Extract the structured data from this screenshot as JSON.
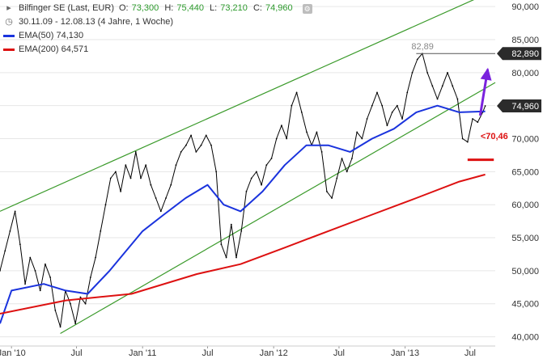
{
  "header": {
    "instrument": "Bilfinger SE (Last, EUR)",
    "o_label": "O:",
    "o": "73,300",
    "h_label": "H:",
    "h": "75,440",
    "l_label": "L:",
    "l": "73,210",
    "c_label": "C:",
    "c": "74,960",
    "period": "30.11.09 - 12.08.13 (4 Jahre, 1 Woche)",
    "ema50_label": "EMA(50)",
    "ema50_value": "74,130",
    "ema200_label": "EMA(200)",
    "ema200_value": "64,571",
    "clock_icon": "clock-icon",
    "settings_icon": "settings-icon"
  },
  "colors": {
    "price": "#000000",
    "ema50": "#1a33dd",
    "ema200": "#dd1111",
    "channel": "#3a9a2a",
    "annotation": "#dd1111",
    "arrow": "#7a22dd",
    "gridline": "#e6e6e6",
    "label_box": "#2b2b2b",
    "ohlc_values": "#2d9a2d"
  },
  "chart_data": {
    "type": "line",
    "title": "Bilfinger SE (Last, EUR)",
    "ylim": [
      38600,
      91000
    ],
    "xlim": [
      "2009-11-30",
      "2013-09-09"
    ],
    "grid": "horizontal",
    "legend_placement": "top-left",
    "y_ticks": [
      {
        "value": 40000,
        "label": "40,000"
      },
      {
        "value": 45000,
        "label": "45,000"
      },
      {
        "value": 50000,
        "label": "50,000"
      },
      {
        "value": 55000,
        "label": "55,000"
      },
      {
        "value": 60000,
        "label": "60,000"
      },
      {
        "value": 65000,
        "label": "65,000"
      },
      {
        "value": 70000,
        "label": "70,000"
      },
      {
        "value": 75000,
        "label": "75,000"
      },
      {
        "value": 80000,
        "label": "80,000"
      },
      {
        "value": 85000,
        "label": "85,000"
      },
      {
        "value": 90000,
        "label": "90,000"
      }
    ],
    "x_ticks": [
      {
        "date": "2010-01-01",
        "label": "Jan '10"
      },
      {
        "date": "2010-07-01",
        "label": "Jul"
      },
      {
        "date": "2011-01-01",
        "label": "Jan '11"
      },
      {
        "date": "2011-07-01",
        "label": "Jul"
      },
      {
        "date": "2012-01-01",
        "label": "Jan '12"
      },
      {
        "date": "2012-07-01",
        "label": "Jul"
      },
      {
        "date": "2013-01-01",
        "label": "Jan '13"
      },
      {
        "date": "2013-07-01",
        "label": "Jul"
      }
    ],
    "series": [
      {
        "name": "Bilfinger SE (Last, EUR)",
        "key": "price",
        "points": [
          [
            "2009-11-30",
            50000
          ],
          [
            "2009-12-14",
            53000
          ],
          [
            "2009-12-28",
            56000
          ],
          [
            "2010-01-11",
            59000
          ],
          [
            "2010-01-25",
            54000
          ],
          [
            "2010-02-08",
            48000
          ],
          [
            "2010-02-22",
            52000
          ],
          [
            "2010-03-08",
            50000
          ],
          [
            "2010-03-22",
            47000
          ],
          [
            "2010-04-05",
            51000
          ],
          [
            "2010-04-19",
            49000
          ],
          [
            "2010-05-03",
            44000
          ],
          [
            "2010-05-17",
            41500
          ],
          [
            "2010-05-31",
            47000
          ],
          [
            "2010-06-14",
            45000
          ],
          [
            "2010-06-28",
            42000
          ],
          [
            "2010-07-12",
            46000
          ],
          [
            "2010-07-26",
            45000
          ],
          [
            "2010-08-09",
            49000
          ],
          [
            "2010-08-23",
            52000
          ],
          [
            "2010-09-06",
            56000
          ],
          [
            "2010-09-20",
            60000
          ],
          [
            "2010-10-04",
            64000
          ],
          [
            "2010-10-18",
            65000
          ],
          [
            "2010-11-01",
            62000
          ],
          [
            "2010-11-15",
            66000
          ],
          [
            "2010-11-29",
            64000
          ],
          [
            "2010-12-13",
            68000
          ],
          [
            "2010-12-27",
            64000
          ],
          [
            "2011-01-10",
            66000
          ],
          [
            "2011-01-24",
            63000
          ],
          [
            "2011-02-07",
            61000
          ],
          [
            "2011-02-21",
            59000
          ],
          [
            "2011-03-07",
            61000
          ],
          [
            "2011-03-21",
            63000
          ],
          [
            "2011-04-04",
            66000
          ],
          [
            "2011-04-18",
            68000
          ],
          [
            "2011-05-02",
            69000
          ],
          [
            "2011-05-16",
            70500
          ],
          [
            "2011-05-30",
            68000
          ],
          [
            "2011-06-13",
            69000
          ],
          [
            "2011-06-27",
            70500
          ],
          [
            "2011-07-11",
            69000
          ],
          [
            "2011-07-25",
            65000
          ],
          [
            "2011-08-08",
            54000
          ],
          [
            "2011-08-22",
            52000
          ],
          [
            "2011-09-05",
            57000
          ],
          [
            "2011-09-19",
            52000
          ],
          [
            "2011-10-03",
            56000
          ],
          [
            "2011-10-17",
            62000
          ],
          [
            "2011-10-31",
            64000
          ],
          [
            "2011-11-14",
            65000
          ],
          [
            "2011-11-28",
            63000
          ],
          [
            "2011-12-12",
            66000
          ],
          [
            "2011-12-26",
            67000
          ],
          [
            "2012-01-09",
            70000
          ],
          [
            "2012-01-23",
            72000
          ],
          [
            "2012-02-06",
            70000
          ],
          [
            "2012-02-20",
            75000
          ],
          [
            "2012-03-05",
            77000
          ],
          [
            "2012-03-19",
            74000
          ],
          [
            "2012-04-02",
            71000
          ],
          [
            "2012-04-16",
            69000
          ],
          [
            "2012-04-30",
            71000
          ],
          [
            "2012-05-14",
            68000
          ],
          [
            "2012-05-28",
            62000
          ],
          [
            "2012-06-11",
            61000
          ],
          [
            "2012-06-25",
            64000
          ],
          [
            "2012-07-09",
            67000
          ],
          [
            "2012-07-23",
            65000
          ],
          [
            "2012-08-06",
            67000
          ],
          [
            "2012-08-20",
            71000
          ],
          [
            "2012-09-03",
            70000
          ],
          [
            "2012-09-17",
            73000
          ],
          [
            "2012-10-01",
            75000
          ],
          [
            "2012-10-15",
            77000
          ],
          [
            "2012-10-29",
            75000
          ],
          [
            "2012-11-12",
            72000
          ],
          [
            "2012-11-26",
            74000
          ],
          [
            "2012-12-10",
            75000
          ],
          [
            "2012-12-24",
            73000
          ],
          [
            "2013-01-07",
            77000
          ],
          [
            "2013-01-21",
            80000
          ],
          [
            "2013-02-04",
            82000
          ],
          [
            "2013-02-18",
            82890
          ],
          [
            "2013-03-04",
            80000
          ],
          [
            "2013-03-18",
            78000
          ],
          [
            "2013-04-01",
            76000
          ],
          [
            "2013-04-15",
            78000
          ],
          [
            "2013-04-29",
            80000
          ],
          [
            "2013-05-13",
            78000
          ],
          [
            "2013-05-27",
            76000
          ],
          [
            "2013-06-10",
            70000
          ],
          [
            "2013-06-24",
            69500
          ],
          [
            "2013-07-08",
            73000
          ],
          [
            "2013-07-22",
            72500
          ],
          [
            "2013-08-05",
            74000
          ],
          [
            "2013-08-12",
            74960
          ]
        ]
      },
      {
        "name": "EMA(50)",
        "key": "ema50",
        "points": [
          [
            "2009-11-30",
            42000
          ],
          [
            "2010-01-01",
            47000
          ],
          [
            "2010-04-01",
            48000
          ],
          [
            "2010-06-01",
            47000
          ],
          [
            "2010-08-01",
            46500
          ],
          [
            "2010-10-01",
            50000
          ],
          [
            "2011-01-01",
            56000
          ],
          [
            "2011-03-01",
            58500
          ],
          [
            "2011-05-01",
            61000
          ],
          [
            "2011-07-01",
            63000
          ],
          [
            "2011-08-15",
            60000
          ],
          [
            "2011-10-01",
            59000
          ],
          [
            "2011-12-01",
            62000
          ],
          [
            "2012-02-01",
            66000
          ],
          [
            "2012-04-01",
            69000
          ],
          [
            "2012-06-01",
            69000
          ],
          [
            "2012-08-01",
            68000
          ],
          [
            "2012-10-01",
            70000
          ],
          [
            "2012-12-01",
            71500
          ],
          [
            "2013-02-01",
            74000
          ],
          [
            "2013-04-01",
            75000
          ],
          [
            "2013-06-01",
            74000
          ],
          [
            "2013-08-12",
            74130
          ]
        ]
      },
      {
        "name": "EMA(200)",
        "key": "ema200",
        "points": [
          [
            "2009-11-30",
            43500
          ],
          [
            "2010-06-01",
            45500
          ],
          [
            "2010-12-01",
            46500
          ],
          [
            "2011-06-01",
            49500
          ],
          [
            "2011-10-01",
            51000
          ],
          [
            "2012-02-01",
            53500
          ],
          [
            "2012-06-01",
            56000
          ],
          [
            "2012-10-01",
            58500
          ],
          [
            "2013-02-01",
            61000
          ],
          [
            "2013-06-01",
            63500
          ],
          [
            "2013-08-12",
            64571
          ]
        ]
      }
    ],
    "trend_channel": [
      {
        "name": "upper",
        "from": [
          "2009-11-30",
          59000
        ],
        "to": [
          "2013-09-09",
          92500
        ]
      },
      {
        "name": "lower",
        "from": [
          "2010-05-17",
          40500
        ],
        "to": [
          "2013-09-09",
          78500
        ]
      }
    ],
    "annotations": {
      "high_label": "82,89",
      "high_value": 82890,
      "high_line_from": "2013-02-01",
      "support_label": "<70,46",
      "support_value": 70460,
      "support_line_value": 66800,
      "support_line_from": "2013-06-24",
      "support_line_to": "2013-09-05",
      "arrow_from": [
        "2013-07-29",
        73500
      ],
      "arrow_to": [
        "2013-08-19",
        80500
      ]
    },
    "price_tags": [
      {
        "label": "82,890",
        "value": 82890
      },
      {
        "label": "74,960",
        "value": 74960
      }
    ]
  }
}
